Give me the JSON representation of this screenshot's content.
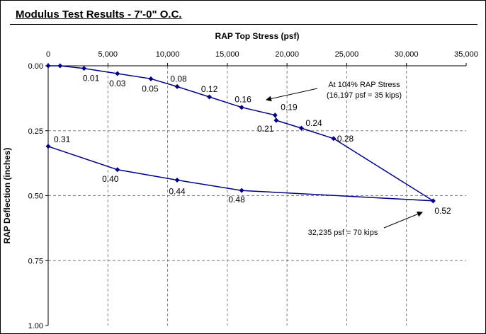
{
  "chart_data": {
    "type": "line",
    "title": "Modulus Test Results - 7'-0\" O.C.",
    "xlabel": "RAP Top Stress (psf)",
    "ylabel": "RAP Deflection (inches)",
    "x_axis_position": "top",
    "y_axis_reversed": true,
    "xlim": [
      0,
      35000
    ],
    "ylim": [
      0,
      1.0
    ],
    "x_ticks": [
      0,
      5000,
      10000,
      15000,
      20000,
      25000,
      30000,
      35000
    ],
    "x_tick_labels": [
      "0",
      "5,000",
      "10,000",
      "15,000",
      "20,000",
      "25,000",
      "30,000",
      "35,000"
    ],
    "y_ticks": [
      0,
      0.25,
      0.5,
      0.75,
      1.0
    ],
    "y_tick_labels": [
      "0.00",
      "0.25",
      "0.50",
      "0.75",
      "1.00"
    ],
    "grid": true,
    "line_color": "#000080",
    "series": [
      {
        "x": [
          0,
          1000,
          3000,
          5800,
          8600,
          10800,
          13500,
          16200,
          19000,
          19100,
          21200,
          23900,
          32235,
          16200,
          10800,
          5800,
          0
        ],
        "y": [
          0,
          0,
          0.01,
          0.03,
          0.05,
          0.08,
          0.12,
          0.16,
          0.19,
          0.21,
          0.24,
          0.28,
          0.52,
          0.48,
          0.44,
          0.4,
          0.31
        ],
        "labels": [
          "",
          "",
          "0.01",
          "0.03",
          "0.05",
          "0.08",
          "0.12",
          "0.16",
          "0.19",
          "0.21",
          "0.24",
          "0.28",
          "0.52",
          "0.48",
          "0.44",
          "0.40",
          "0.31"
        ]
      }
    ],
    "annotations": [
      {
        "lines": [
          "At 104% RAP Stress",
          "(16,197 psf = 35 kips)"
        ],
        "x": 16200,
        "y": 0.16
      },
      {
        "lines": [
          "32,235 psf = 70 kips"
        ],
        "x": 32235,
        "y": 0.52
      }
    ]
  }
}
